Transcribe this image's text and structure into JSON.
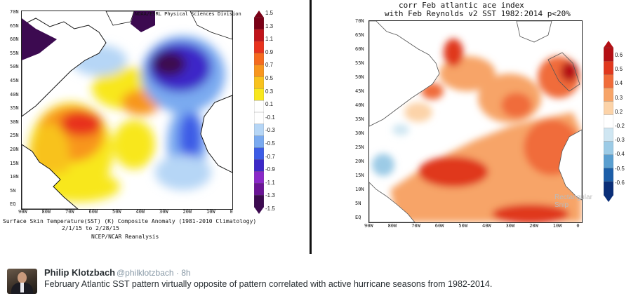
{
  "left_map": {
    "header": "NOAA/ESRL Physical Sciences Division",
    "lat_labels": [
      "70N",
      "65N",
      "60N",
      "55N",
      "50N",
      "45N",
      "40N",
      "35N",
      "30N",
      "25N",
      "20N",
      "15N",
      "10N",
      "5N",
      "EQ"
    ],
    "lon_labels": [
      "90W",
      "80W",
      "70W",
      "60W",
      "50W",
      "40W",
      "30W",
      "20W",
      "10W",
      "0"
    ],
    "colorbar_labels": [
      "1.5",
      "1.3",
      "1.1",
      "0.9",
      "0.7",
      "0.5",
      "0.3",
      "0.1",
      "-0.1",
      "-0.3",
      "-0.5",
      "-0.7",
      "-0.9",
      "-1.1",
      "-1.3",
      "-1.5"
    ],
    "colorbar_colors": [
      "#7a0016",
      "#c0141a",
      "#e8321e",
      "#f56a1e",
      "#f8961e",
      "#f8c21e",
      "#f8e71e",
      "#ffffff",
      "#ffffff",
      "#b6d6f6",
      "#7aaaf0",
      "#3c5ce6",
      "#3c28c8",
      "#8a28c8",
      "#6a1496",
      "#3c0a50"
    ],
    "caption_line1": "Surface Skin Temperature(SST) (K) Composite Anomaly (1981-2010 Climatology)",
    "caption_line2": "2/1/15  to 2/28/15",
    "caption_line3": "NCEP/NCAR Reanalysis"
  },
  "right_map": {
    "title_line1": "corr Feb atlantic ace index",
    "title_line2": "with Feb Reynolds v2 SST 1982:2014 p<20%",
    "lat_labels": [
      "70N",
      "65N",
      "60N",
      "55N",
      "50N",
      "45N",
      "40N",
      "35N",
      "30N",
      "25N",
      "20N",
      "15N",
      "10N",
      "5N",
      "EQ"
    ],
    "lon_labels": [
      "90W",
      "80W",
      "70W",
      "60W",
      "50W",
      "40W",
      "30W",
      "20W",
      "10W",
      "0"
    ],
    "colorbar_labels": [
      "0.6",
      "0.5",
      "0.4",
      "0.3",
      "0.2",
      "-0.2",
      "-0.3",
      "-0.4",
      "-0.5",
      "-0.6"
    ],
    "colorbar_colors": [
      "#b40f14",
      "#e0381e",
      "#f06c3a",
      "#f7a468",
      "#fcd3a8",
      "#ffffff",
      "#cfe6f2",
      "#9ccbe6",
      "#5a9fd0",
      "#1c5ea8",
      "#0a2e78"
    ],
    "watermark": "Rectangular Snip"
  },
  "tweet": {
    "name": "Philip Klotzbach",
    "handle": "@philklotzbach · 8h",
    "text": "February Atlantic SST pattern virtually opposite of pattern correlated with active hurricane seasons from 1982-2014."
  }
}
